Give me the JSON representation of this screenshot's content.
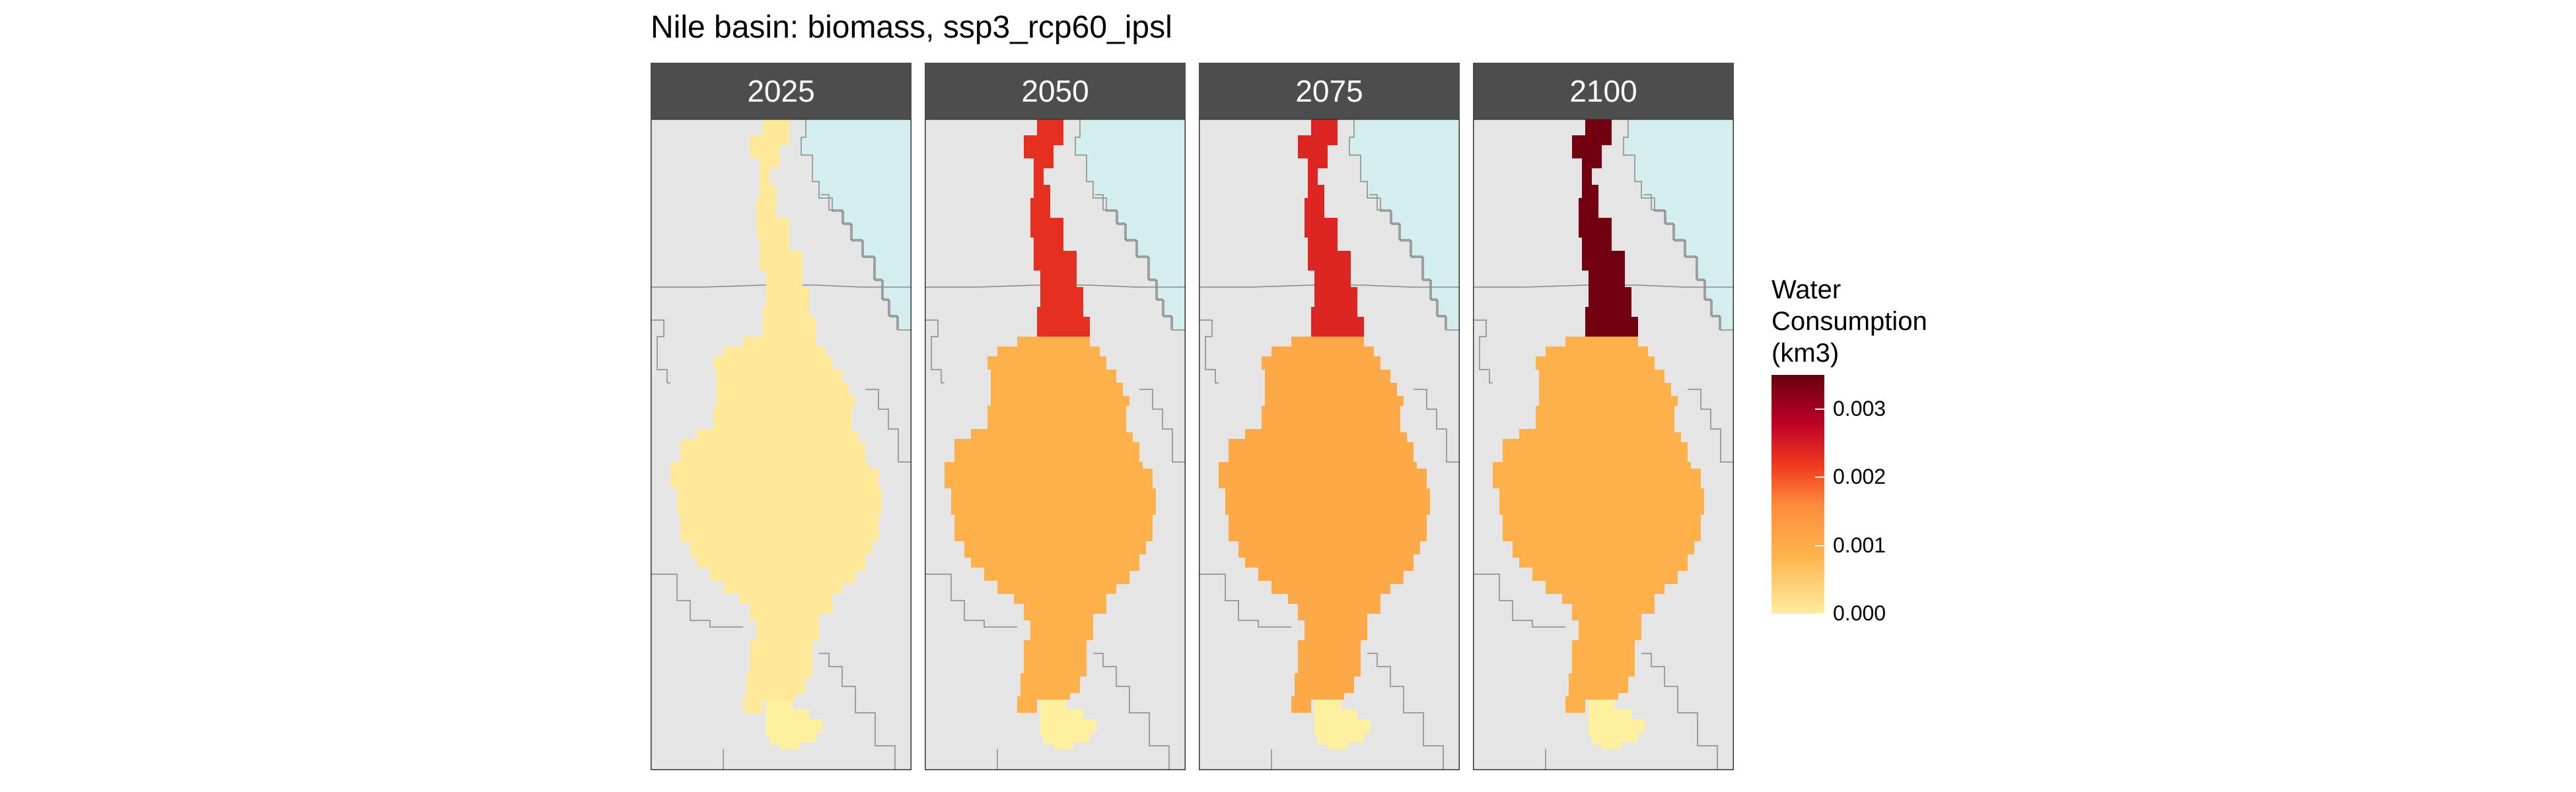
{
  "title": "Nile basin: biomass, ssp3_rcp60_ipsl",
  "panels": [
    {
      "year": "2025",
      "level": 8e-05,
      "north_level": 8e-05
    },
    {
      "year": "2050",
      "level": 0.0009,
      "north_level": 0.0023
    },
    {
      "year": "2075",
      "level": 0.00105,
      "north_level": 0.0024
    },
    {
      "year": "2100",
      "level": 0.0009,
      "north_level": 0.0034
    }
  ],
  "legend": {
    "title_lines": [
      "Water",
      "Consumption",
      "(km3)"
    ],
    "ticks": [
      "0.003",
      "0.002",
      "0.001",
      "0.000"
    ],
    "tick_values": [
      0.003,
      0.002,
      0.001,
      0.0
    ],
    "range": [
      0.0,
      0.0035
    ]
  },
  "colors": {
    "panel_background": "#e5e5e5",
    "strip": "#4d4d4d",
    "water": "#d4eef0",
    "border": "#888888",
    "lake": "#fff0a0"
  }
}
